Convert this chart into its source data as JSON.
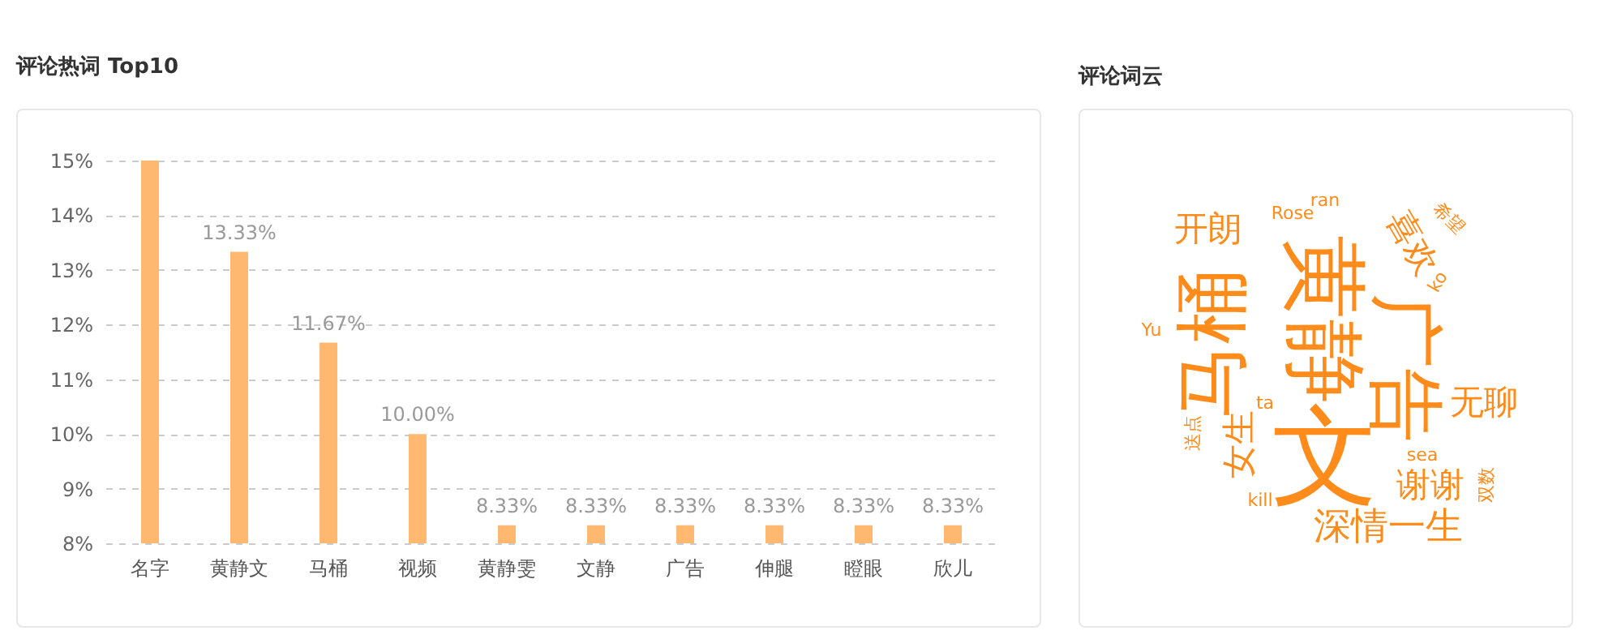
{
  "chart_data": [
    {
      "type": "bar",
      "title": "评论热词 Top10",
      "categories": [
        "名字",
        "黄静文",
        "马桶",
        "视频",
        "黄静雯",
        "文静",
        "广告",
        "伸腿",
        "瞪眼",
        "欣儿"
      ],
      "values": [
        15,
        13.33,
        11.67,
        10,
        8.33,
        8.33,
        8.33,
        8.33,
        8.33,
        8.33
      ],
      "value_labels": [
        null,
        "13.33%",
        "11.67%",
        "10.00%",
        "8.33%",
        "8.33%",
        "8.33%",
        "8.33%",
        "8.33%",
        "8.33%"
      ],
      "color": "#ffb870",
      "ylim": [
        8,
        15
      ],
      "yticks": [
        {
          "value": 8,
          "label": "8%"
        },
        {
          "value": 9,
          "label": "9%"
        },
        {
          "value": 10,
          "label": "10%"
        },
        {
          "value": 11,
          "label": "11%"
        },
        {
          "value": 12,
          "label": "12%"
        },
        {
          "value": 13,
          "label": "13%"
        },
        {
          "value": 14,
          "label": "14%"
        },
        {
          "value": 15,
          "label": "15%"
        }
      ],
      "grid": "y",
      "line_style": "dashed"
    },
    {
      "type": "other",
      "title": "评论词云",
      "annotations": [
        "黄静",
        "马桶",
        "广告",
        "文",
        "开朗",
        "Rose",
        "ran",
        "喜欢",
        "希望",
        "ko",
        "Yu",
        "无聊",
        "ta",
        "送点",
        "女生",
        "sea",
        "谢谢",
        "双数",
        "kill",
        "深情一生"
      ]
    }
  ]
}
